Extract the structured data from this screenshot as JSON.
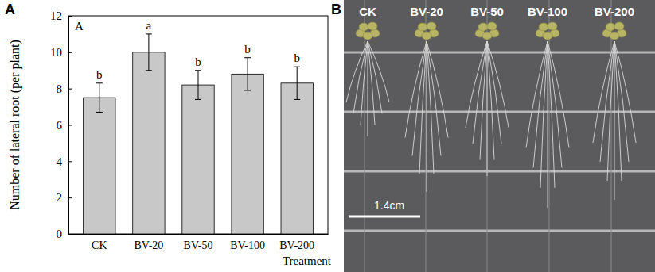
{
  "panel_labels": [
    "A",
    "B"
  ],
  "chart_data": {
    "type": "bar",
    "annotations": [
      "A"
    ],
    "y_label": "Number of lateral root (per plant)",
    "x_label": "Treatment",
    "categories": [
      "CK",
      "BV-20",
      "BV-50",
      "BV-100",
      "BV-200"
    ],
    "values": [
      7.5,
      10.0,
      8.2,
      8.8,
      8.3
    ],
    "errors": [
      0.8,
      1.0,
      0.8,
      0.9,
      0.9
    ],
    "group_letters": [
      "b",
      "a",
      "b",
      "b",
      "b"
    ],
    "color": "#c8c8c8",
    "ylim": [
      0,
      12
    ],
    "yticks": [
      0,
      2,
      4,
      6,
      8,
      10,
      12
    ],
    "grid": false
  },
  "photo": {
    "labels": [
      "CK",
      "BV-20",
      "BV-50",
      "BV-100",
      "BV-200"
    ],
    "scale_bar": "1.4cm"
  }
}
